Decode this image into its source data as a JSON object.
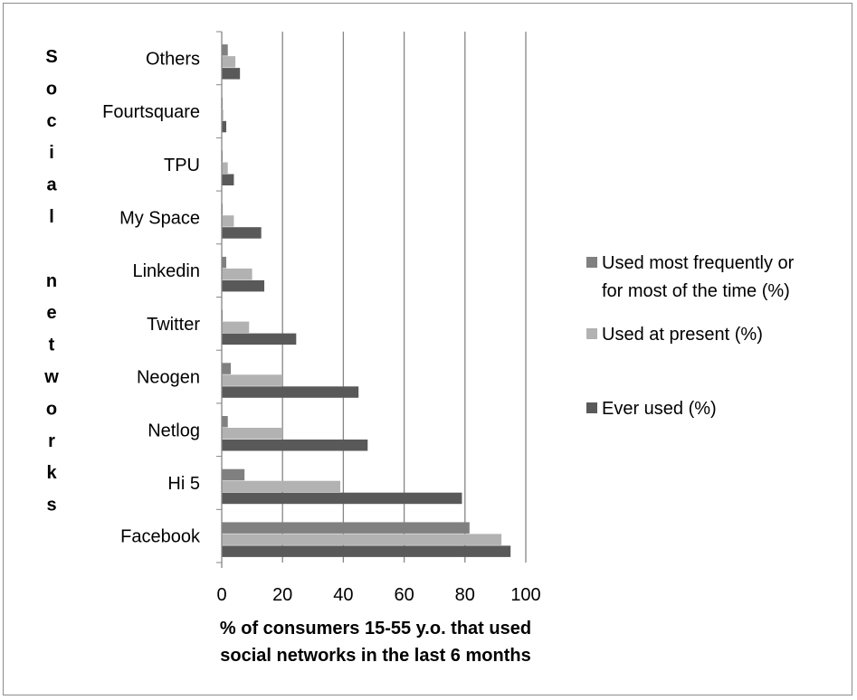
{
  "chart_data": {
    "type": "bar",
    "orientation": "horizontal",
    "categories": [
      "Facebook",
      "Hi 5",
      "Netlog",
      "Neogen",
      "Twitter",
      "Linkedin",
      "My Space",
      "TPU",
      "Fourtsquare",
      "Others"
    ],
    "series": [
      {
        "name": "Used most frequently or for most of the time (%)",
        "color": "#808080",
        "values": [
          81.5,
          7.5,
          2,
          3,
          0.3,
          1.5,
          0.3,
          0.3,
          0.3,
          2
        ]
      },
      {
        "name": "Used at present (%)",
        "color": "#b2b2b2",
        "values": [
          92,
          39,
          20,
          20,
          9,
          10,
          4,
          2,
          0.5,
          4.5
        ]
      },
      {
        "name": "Ever used (%)",
        "color": "#595959",
        "values": [
          95,
          79,
          48,
          45,
          24.5,
          14,
          13,
          4,
          1.5,
          6
        ]
      }
    ],
    "xlim": [
      0,
      100
    ],
    "xticks": [
      "0",
      "20",
      "40",
      "60",
      "80",
      "100"
    ],
    "xlabel": [
      "% of consumers 15-55 y.o. that used",
      "social networks in the last 6 months"
    ],
    "ylabel_letters": [
      "S",
      "o",
      "c",
      "i",
      "a",
      "l",
      "",
      "n",
      "e",
      "t",
      "w",
      "o",
      "r",
      "k",
      "s"
    ],
    "grid": true,
    "legend_position": "right"
  }
}
